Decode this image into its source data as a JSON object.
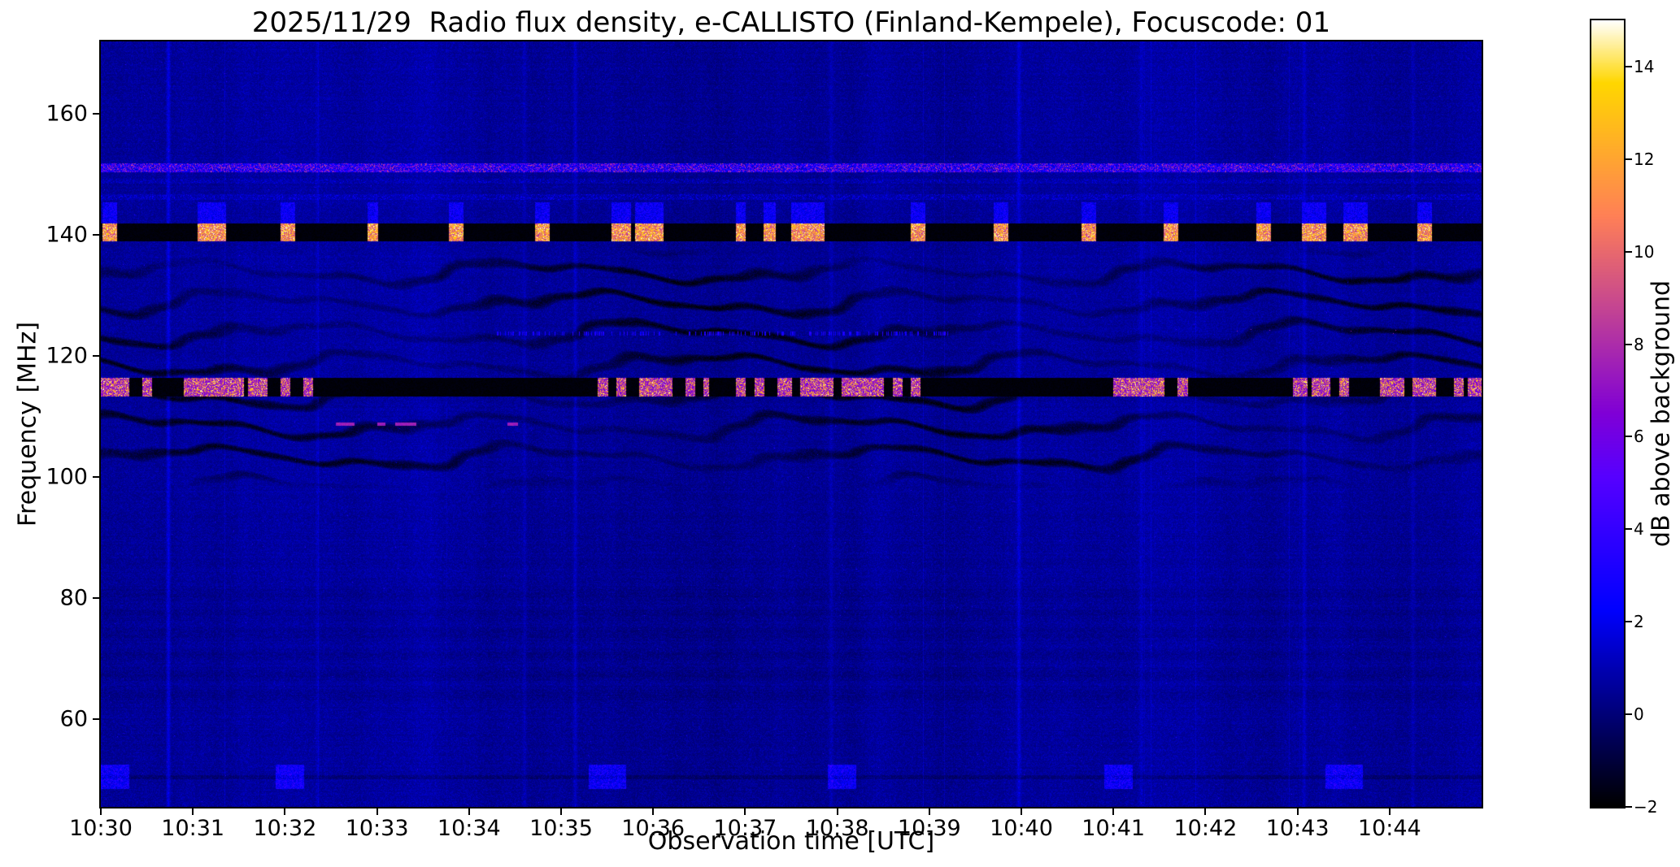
{
  "figure": {
    "background": "#ffffff"
  },
  "chart_data": {
    "type": "heatmap",
    "title": "2025/11/29  Radio flux density, e-CALLISTO (Finland-Kempele), Focuscode: 01",
    "xlabel": "Observation time [UTC]",
    "ylabel": "Frequency [MHz]",
    "colorbar_label": "dB above background",
    "colormap": "gnuplot2",
    "grid": false,
    "x_start": "10:30",
    "x_end": "10:45",
    "time_span_minutes": 15,
    "x_tick_labels": [
      "10:30",
      "10:31",
      "10:32",
      "10:33",
      "10:34",
      "10:35",
      "10:36",
      "10:37",
      "10:38",
      "10:39",
      "10:40",
      "10:41",
      "10:42",
      "10:43",
      "10:44"
    ],
    "y_ticks": [
      160,
      140,
      120,
      100,
      80,
      60
    ],
    "freq_range": [
      45.5,
      172
    ],
    "value_range": [
      -2,
      15
    ],
    "colorbar_ticks": [
      {
        "v": 14,
        "label": "14"
      },
      {
        "v": 12,
        "label": "12"
      },
      {
        "v": 10,
        "label": "10"
      },
      {
        "v": 8,
        "label": "8"
      },
      {
        "v": 6,
        "label": "6"
      },
      {
        "v": 4,
        "label": "4"
      },
      {
        "v": 2,
        "label": "2"
      },
      {
        "v": 0,
        "label": "0"
      },
      {
        "v": -2,
        "label": "−2"
      }
    ],
    "features": {
      "background_db": 0.18,
      "rfi_bands": [
        {
          "name": "blanked-band-140MHz",
          "f": [
            139.0,
            141.9
          ],
          "level": -2,
          "burst_level": [
            8,
            15
          ],
          "bursts": [
            [
              0.02,
              0.17
            ],
            [
              1.05,
              1.35
            ],
            [
              1.95,
              2.1
            ],
            [
              2.9,
              3.0
            ],
            [
              3.78,
              3.93
            ],
            [
              4.72,
              4.87
            ],
            [
              5.55,
              5.75
            ],
            [
              5.8,
              6.1
            ],
            [
              6.9,
              7.0
            ],
            [
              7.2,
              7.32
            ],
            [
              7.5,
              7.85
            ],
            [
              8.8,
              8.95
            ],
            [
              9.7,
              9.85
            ],
            [
              10.65,
              10.8
            ],
            [
              11.55,
              11.7
            ],
            [
              12.55,
              12.7
            ],
            [
              13.05,
              13.3
            ],
            [
              13.5,
              13.75
            ],
            [
              14.3,
              14.45
            ]
          ]
        },
        {
          "name": "blanked-band-115MHz",
          "f": [
            113.3,
            116.4
          ],
          "level": -2,
          "burst_level": [
            6,
            15
          ],
          "bursts": [
            [
              0.0,
              0.3
            ],
            [
              0.45,
              0.55
            ],
            [
              0.9,
              1.55
            ],
            [
              1.6,
              1.8
            ],
            [
              1.95,
              2.05
            ],
            [
              2.2,
              2.3
            ],
            [
              5.4,
              5.5
            ],
            [
              5.6,
              5.7
            ],
            [
              5.85,
              6.2
            ],
            [
              6.35,
              6.45
            ],
            [
              6.55,
              6.6
            ],
            [
              6.9,
              7.0
            ],
            [
              7.1,
              7.2
            ],
            [
              7.35,
              7.5
            ],
            [
              7.6,
              7.95
            ],
            [
              8.05,
              8.5
            ],
            [
              8.6,
              8.7
            ],
            [
              8.8,
              8.9
            ],
            [
              11.0,
              11.55
            ],
            [
              11.7,
              11.8
            ],
            [
              12.95,
              13.1
            ],
            [
              13.15,
              13.35
            ],
            [
              13.45,
              13.55
            ],
            [
              13.9,
              14.15
            ],
            [
              14.25,
              14.5
            ],
            [
              14.7,
              14.8
            ],
            [
              14.85,
              15.0
            ]
          ]
        }
      ],
      "speckle_lines": [
        {
          "f": 151.15,
          "halfwidth": 0.75,
          "density": 0.85,
          "level": [
            2,
            9.5
          ]
        },
        {
          "f": 146.3,
          "halfwidth": 0.45,
          "density": 0.35,
          "level": [
            1,
            3
          ]
        },
        {
          "f": 148.9,
          "halfwidth": 0.35,
          "density": 0.25,
          "level": [
            1,
            2.5
          ]
        }
      ],
      "fringes": {
        "f": [
          98,
          138
        ],
        "spacing_mhz": 5.1,
        "depth": 2.1
      },
      "dashes_109": {
        "f": 108.8,
        "halfwidth": 0.28,
        "level": 7,
        "windows": [
          [
            2.55,
            2.75
          ],
          [
            3.0,
            3.08
          ],
          [
            3.2,
            3.42
          ],
          [
            4.42,
            4.52
          ]
        ]
      },
      "dotted_line_124": {
        "f": 123.7,
        "halfwidth": 0.3,
        "t": [
          4.3,
          9.2
        ],
        "level": 3
      },
      "pink_dots_124": {
        "f": 124.0,
        "halfwidth": 0.5,
        "level": 7.5,
        "density": 0.004,
        "windows": [
          [
            8.6,
            8.9
          ],
          [
            12.3,
            14.9
          ]
        ]
      },
      "low_band_segments": {
        "f": [
          48.5,
          52.5
        ],
        "level": 1.2,
        "dark_row_f": 50.4,
        "windows": [
          [
            0.0,
            0.3
          ],
          [
            1.9,
            2.2
          ],
          [
            5.3,
            5.7
          ],
          [
            7.9,
            8.2
          ],
          [
            10.9,
            11.2
          ],
          [
            13.3,
            13.7
          ]
        ]
      },
      "vertical_streaks": [
        [
          0.73,
          1.3
        ],
        [
          2.35,
          0.4
        ],
        [
          4.6,
          0.5
        ],
        [
          5.15,
          0.8
        ],
        [
          7.93,
          0.5
        ],
        [
          9.97,
          0.9
        ],
        [
          11.3,
          0.45
        ],
        [
          13.07,
          0.7
        ],
        [
          14.25,
          0.5
        ]
      ]
    }
  }
}
